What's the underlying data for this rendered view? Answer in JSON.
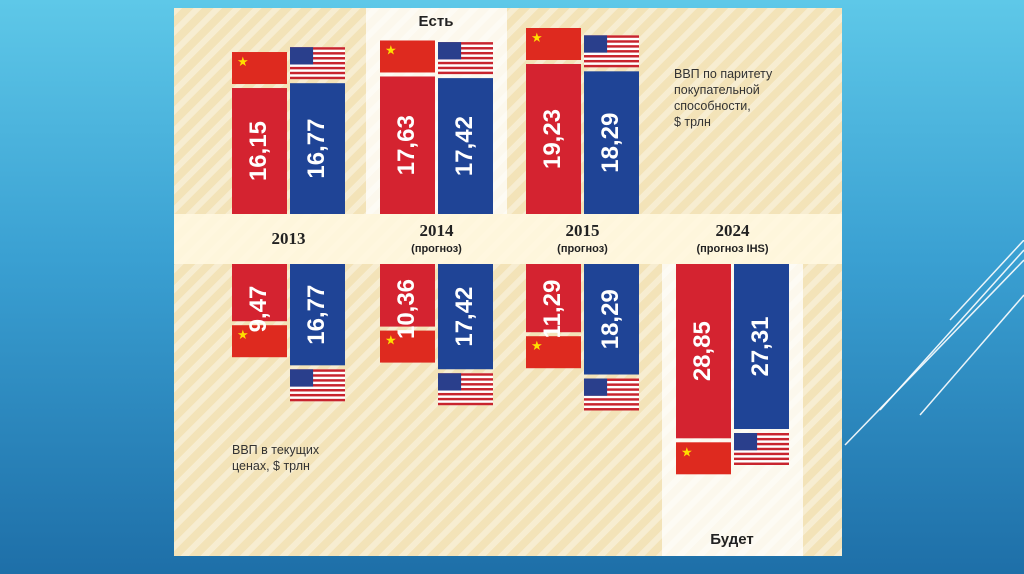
{
  "chart_data": {
    "type": "bar",
    "top_header": "Есть",
    "bottom_footer": "Будет",
    "top_note": [
      "ВВП по паритету",
      "покупательной",
      "способности,",
      "$ трлн"
    ],
    "bottom_note": [
      "ВВП в текущих",
      "ценах, $ трлн"
    ],
    "categories": [
      {
        "year": "2013",
        "sub": ""
      },
      {
        "year": "2014",
        "sub": "(прогноз)"
      },
      {
        "year": "2015",
        "sub": "(прогноз)"
      },
      {
        "year": "2024",
        "sub": "(прогноз IHS)"
      }
    ],
    "ppp": {
      "china": [
        16.15,
        17.63,
        19.23,
        null
      ],
      "usa": [
        16.77,
        17.42,
        18.29,
        null
      ],
      "china_labels": [
        "16,15",
        "17,63",
        "19,23",
        ""
      ],
      "usa_labels": [
        "16,77",
        "17,42",
        "18,29",
        ""
      ]
    },
    "nominal": {
      "china": [
        9.47,
        10.36,
        11.29,
        28.85
      ],
      "usa": [
        16.77,
        17.42,
        18.29,
        27.31
      ],
      "china_labels": [
        "9,47",
        "10,36",
        "11,29",
        "28,85"
      ],
      "usa_labels": [
        "16,77",
        "17,42",
        "18,29",
        "27,31"
      ]
    },
    "colors": {
      "china": "#d42330",
      "usa": "#1f4496",
      "flag_china": "#de2a1f",
      "flag_star": "#ffde00",
      "band": "#fff7e0",
      "highlight": "#ffffff"
    }
  }
}
